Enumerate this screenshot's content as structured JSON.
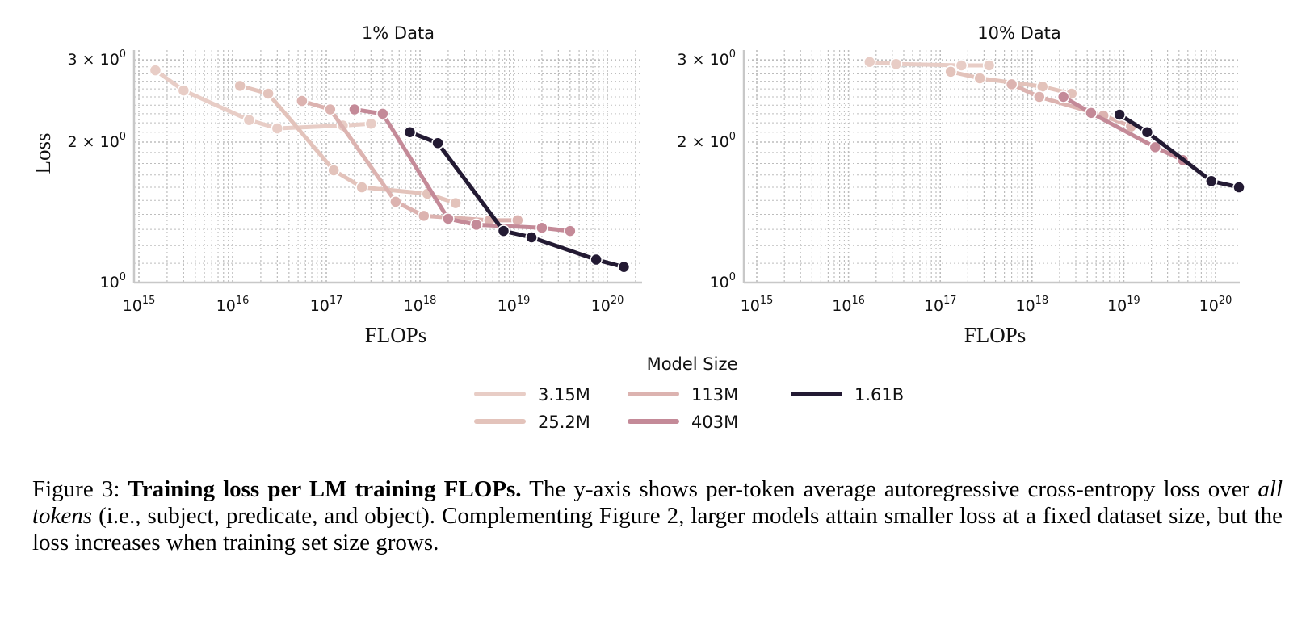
{
  "chart_data": [
    {
      "type": "line",
      "title": "1% Data",
      "xlabel": "FLOPs",
      "ylabel": "Loss",
      "xscale": "log",
      "yscale": "log",
      "xlim": [
        1000000000000000.0,
        3e+20
      ],
      "ylim": [
        1,
        3.1
      ],
      "xticks": [
        {
          "v": 1000000000000000.0,
          "base": "10",
          "exp": "15"
        },
        {
          "v": 1e+16,
          "base": "10",
          "exp": "16"
        },
        {
          "v": 1e+17,
          "base": "10",
          "exp": "17"
        },
        {
          "v": 1e+18,
          "base": "10",
          "exp": "18"
        },
        {
          "v": 1e+19,
          "base": "10",
          "exp": "19"
        },
        {
          "v": 1e+20,
          "base": "10",
          "exp": "20"
        }
      ],
      "yticks": [
        {
          "v": 3,
          "label": "3 × 10",
          "exp": "0"
        },
        {
          "v": 2,
          "label": "2 × 10",
          "exp": "0"
        },
        {
          "v": 1,
          "label": "10",
          "exp": "0"
        }
      ],
      "grid": true,
      "series": [
        {
          "name": "3.15M",
          "x": [
            1500000000000000.0,
            3000000000000000.0,
            1.5e+16,
            3e+16,
            1.5e+17,
            3e+17
          ],
          "y": [
            2.85,
            2.58,
            2.23,
            2.14,
            2.17,
            2.19
          ]
        },
        {
          "name": "25.2M",
          "x": [
            1.2e+16,
            2.4e+16,
            1.2e+17,
            2.4e+17,
            1.2e+18,
            2.4e+18
          ],
          "y": [
            2.64,
            2.54,
            1.74,
            1.6,
            1.55,
            1.48
          ]
        },
        {
          "name": "113M",
          "x": [
            5.5e+16,
            1.1e+17,
            5.5e+17,
            1.1e+18,
            5.5e+18,
            1.1e+19
          ],
          "y": [
            2.45,
            2.35,
            1.49,
            1.39,
            1.36,
            1.36
          ]
        },
        {
          "name": "403M",
          "x": [
            2e+17,
            4e+17,
            2e+18,
            4e+18,
            2e+19,
            4e+19
          ],
          "y": [
            2.35,
            2.3,
            1.37,
            1.33,
            1.31,
            1.29
          ]
        },
        {
          "name": "1.61B",
          "x": [
            7.8e+17,
            1.55e+18,
            7.8e+18,
            1.55e+19,
            7.6e+19,
            1.5e+20
          ],
          "y": [
            2.1,
            1.99,
            1.29,
            1.25,
            1.12,
            1.08
          ]
        }
      ]
    },
    {
      "type": "line",
      "title": "10% Data",
      "xlabel": "FLOPs",
      "ylabel": "",
      "xscale": "log",
      "yscale": "log",
      "xlim": [
        1000000000000000.0,
        3e+20
      ],
      "ylim": [
        1,
        3.1
      ],
      "xticks": [
        {
          "v": 1000000000000000.0,
          "base": "10",
          "exp": "15"
        },
        {
          "v": 1e+16,
          "base": "10",
          "exp": "16"
        },
        {
          "v": 1e+17,
          "base": "10",
          "exp": "17"
        },
        {
          "v": 1e+18,
          "base": "10",
          "exp": "18"
        },
        {
          "v": 1e+19,
          "base": "10",
          "exp": "19"
        },
        {
          "v": 1e+20,
          "base": "10",
          "exp": "20"
        }
      ],
      "yticks": [
        {
          "v": 3,
          "label": "3 × 10",
          "exp": "0"
        },
        {
          "v": 2,
          "label": "2 × 10",
          "exp": "0"
        },
        {
          "v": 1,
          "label": "10",
          "exp": "0"
        }
      ],
      "grid": true,
      "series": [
        {
          "name": "3.15M",
          "x": [
            1.7e+16,
            3.3e+16,
            1.7e+17,
            3.4e+17
          ],
          "y": [
            2.97,
            2.94,
            2.92,
            2.92
          ]
        },
        {
          "name": "25.2M",
          "x": [
            1.3e+17,
            2.7e+17,
            1.3e+18,
            2.7e+18
          ],
          "y": [
            2.83,
            2.74,
            2.63,
            2.54
          ]
        },
        {
          "name": "113M",
          "x": [
            6e+17,
            1.2e+18,
            6e+18,
            1.2e+19
          ],
          "y": [
            2.66,
            2.5,
            2.28,
            2.16
          ]
        },
        {
          "name": "403M",
          "x": [
            2.2e+18,
            4.4e+18,
            2.2e+19,
            4.4e+19
          ],
          "y": [
            2.5,
            2.31,
            1.95,
            1.83
          ]
        },
        {
          "name": "1.61B",
          "x": [
            9e+18,
            1.8e+19,
            9e+19,
            1.8e+20
          ],
          "y": [
            2.29,
            2.1,
            1.65,
            1.6
          ]
        }
      ]
    }
  ],
  "legend": {
    "title": "Model Size",
    "placement": "bottom-center",
    "entries": [
      "3.15M",
      "25.2M",
      "113M",
      "403M",
      "1.61B"
    ]
  },
  "colors": {
    "3.15M": "#e8cdc6",
    "25.2M": "#e3c3bb",
    "113M": "#dcb3b0",
    "403M": "#c48a98",
    "1.61B": "#231a33",
    "grid": "#bdbdbd",
    "spine": "#c8c8c8"
  },
  "caption": {
    "label": "Figure 3:",
    "bold": "Training loss per LM training FLOPs.",
    "text1": "The y-axis shows per-token average autoregressive cross-entropy loss over",
    "italic": "all tokens",
    "text2": "(i.e., subject, predicate, and object). Complementing Figure 2, larger models attain smaller loss at a fixed dataset size, but the loss increases when training set size grows."
  }
}
